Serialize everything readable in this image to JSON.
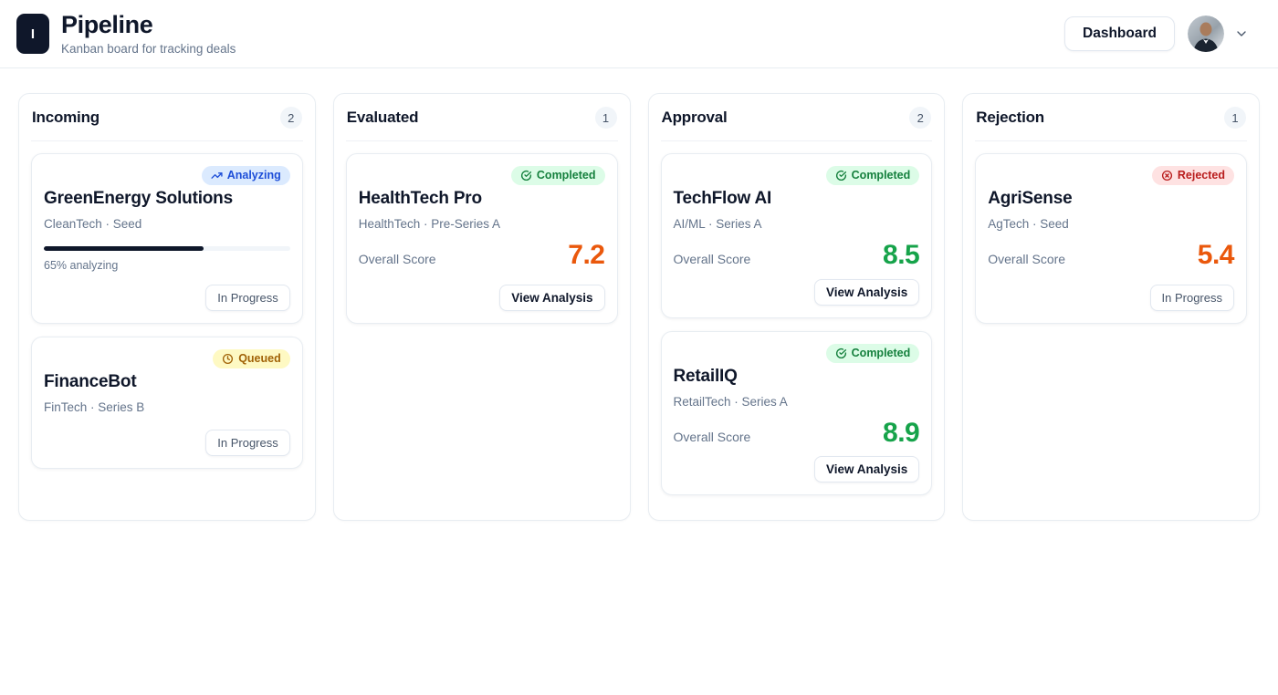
{
  "header": {
    "logo_letter": "I",
    "title": "Pipeline",
    "subtitle": "Kanban board for tracking deals",
    "dashboard_label": "Dashboard"
  },
  "labels": {
    "overall_score": "Overall Score"
  },
  "colors": {
    "brand_dark": "#0f172a",
    "muted_text": "#64748b",
    "border": "#e8edf2",
    "analyzing_bg": "#dbeafe",
    "analyzing_text": "#1d4ed8",
    "queued_bg": "#fef9c3",
    "queued_text": "#a16207",
    "completed_bg": "#dcfce7",
    "completed_text": "#15803d",
    "rejected_bg": "#fee2e2",
    "rejected_text": "#b91c1c",
    "score_green": "#16a34a",
    "score_orange": "#ea580c",
    "progress_fill": "#0f172a"
  },
  "columns": [
    {
      "title": "Incoming",
      "count": 2,
      "cards": [
        {
          "name": "GreenEnergy Solutions",
          "status": "Analyzing",
          "meta": "CleanTech · Seed",
          "progress": {
            "percent": 65,
            "label": "65% analyzing"
          },
          "action": "In Progress"
        },
        {
          "name": "FinanceBot",
          "status": "Queued",
          "meta": "FinTech · Series B",
          "action": "In Progress"
        }
      ]
    },
    {
      "title": "Evaluated",
      "count": 1,
      "cards": [
        {
          "name": "HealthTech Pro",
          "status": "Completed",
          "meta": "HealthTech · Pre-Series A",
          "score": "7.2",
          "action": "View Analysis"
        }
      ]
    },
    {
      "title": "Approval",
      "count": 2,
      "cards": [
        {
          "name": "TechFlow AI",
          "status": "Completed",
          "meta": "AI/ML · Series A",
          "score": "8.5",
          "action": "View Analysis"
        },
        {
          "name": "RetailIQ",
          "status": "Completed",
          "meta": "RetailTech · Series A",
          "score": "8.9",
          "action": "View Analysis"
        }
      ]
    },
    {
      "title": "Rejection",
      "count": 1,
      "cards": [
        {
          "name": "AgriSense",
          "status": "Rejected",
          "meta": "AgTech · Seed",
          "score": "5.4",
          "action": "In Progress"
        }
      ]
    }
  ]
}
